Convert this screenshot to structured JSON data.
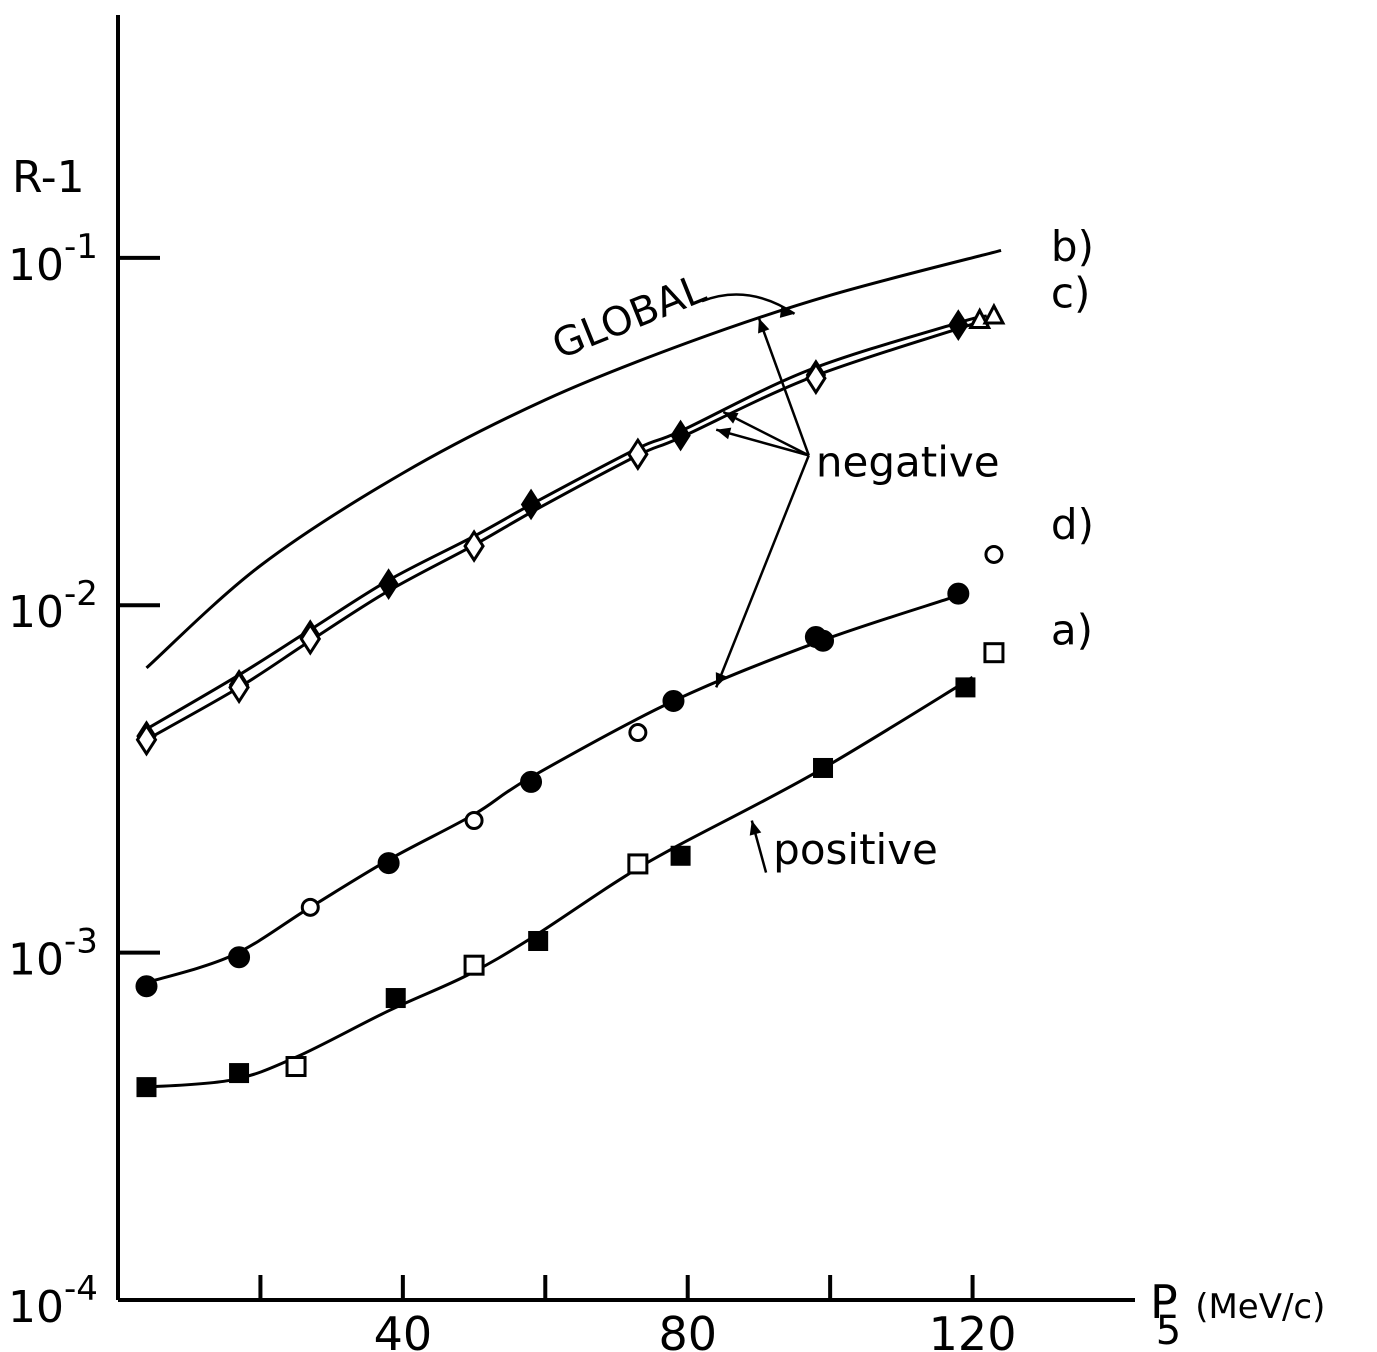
{
  "chart_data": {
    "type": "scatter",
    "y_scale": "log",
    "xlim": [
      0,
      140
    ],
    "ylim": [
      0.0001,
      0.5
    ],
    "x_ticks": [
      {
        "value": 20,
        "label": ""
      },
      {
        "value": 40,
        "label": "40"
      },
      {
        "value": 60,
        "label": ""
      },
      {
        "value": 80,
        "label": "80"
      },
      {
        "value": 100,
        "label": ""
      },
      {
        "value": 120,
        "label": "120"
      }
    ],
    "y_ticks": [
      {
        "value": 0.1,
        "base": "10",
        "exp": "-1"
      },
      {
        "value": 0.01,
        "base": "10",
        "exp": "-2"
      },
      {
        "value": 0.001,
        "base": "10",
        "exp": "-3"
      },
      {
        "value": 0.0001,
        "base": "10",
        "exp": "-4"
      }
    ],
    "ylabel": "R-1",
    "xlabel": {
      "symbol": "P",
      "subscript": "5",
      "unit": "(MeV/c)"
    },
    "curves": [
      {
        "label": "b)",
        "x": [
          4,
          20,
          40,
          60,
          80,
          100,
          124
        ],
        "y": [
          0.0066,
          0.013,
          0.024,
          0.039,
          0.057,
          0.078,
          0.105
        ]
      },
      {
        "label": "c)",
        "x": [
          4,
          17,
          27,
          38,
          50,
          59,
          73,
          79,
          97,
          118,
          122
        ],
        "y": [
          0.0044,
          0.0063,
          0.0085,
          0.0118,
          0.0158,
          0.02,
          0.0283,
          0.0317,
          0.0475,
          0.065,
          0.068
        ]
      },
      {
        "label": "",
        "x": [
          4,
          17,
          27,
          38,
          50,
          59,
          73,
          79,
          97,
          118,
          122
        ],
        "y": [
          0.0041,
          0.0058,
          0.0079,
          0.011,
          0.0149,
          0.019,
          0.027,
          0.0304,
          0.045,
          0.0625,
          0.066
        ]
      },
      {
        "label": "d)",
        "x": [
          4,
          16,
          27,
          38,
          50,
          58,
          78,
          98,
          117
        ],
        "y": [
          0.00082,
          0.00098,
          0.00135,
          0.00185,
          0.0025,
          0.0032,
          0.0053,
          0.0078,
          0.0105
        ]
      },
      {
        "label": "a)",
        "x": [
          4,
          16,
          25,
          38,
          49,
          58,
          70,
          78,
          98,
          120
        ],
        "y": [
          0.00041,
          0.00043,
          0.0005,
          0.00068,
          0.00086,
          0.0011,
          0.0016,
          0.002,
          0.0033,
          0.0062
        ]
      }
    ],
    "series": [
      {
        "name": "a) filled squares",
        "marker": "square",
        "filled": true,
        "x": [
          4,
          17,
          39,
          59,
          79,
          99,
          119
        ],
        "y": [
          0.00041,
          0.00045,
          0.00074,
          0.00108,
          0.0019,
          0.0034,
          0.0058
        ]
      },
      {
        "name": "a) open squares",
        "marker": "square",
        "filled": false,
        "x": [
          25,
          50,
          73,
          123
        ],
        "y": [
          0.00047,
          0.00092,
          0.0018,
          0.0073
        ]
      },
      {
        "name": "d) filled circles",
        "marker": "circle",
        "filled": true,
        "x": [
          4,
          17,
          38,
          58,
          78,
          98,
          99,
          118
        ],
        "y": [
          0.0008,
          0.00097,
          0.00181,
          0.0031,
          0.0053,
          0.0081,
          0.0079,
          0.0108
        ]
      },
      {
        "name": "d) open circles",
        "marker": "circle",
        "filled": false,
        "x": [
          27,
          50,
          73,
          123
        ],
        "y": [
          0.00135,
          0.0024,
          0.0043,
          0.014
        ]
      },
      {
        "name": "c) filled diamonds",
        "marker": "diamond",
        "filled": true,
        "x": [
          4,
          17,
          27,
          38,
          58,
          79,
          98,
          118
        ],
        "y": [
          0.0042,
          0.0059,
          0.0082,
          0.0115,
          0.0195,
          0.0308,
          0.046,
          0.064
        ]
      },
      {
        "name": "c) open diamonds",
        "marker": "diamond",
        "filled": false,
        "x": [
          4,
          17,
          27,
          50,
          73,
          98
        ],
        "y": [
          0.0041,
          0.0058,
          0.008,
          0.0148,
          0.0272,
          0.045
        ]
      },
      {
        "name": "c) open triangles",
        "marker": "triangle",
        "filled": false,
        "x": [
          121,
          123
        ],
        "y": [
          0.066,
          0.068
        ]
      }
    ],
    "annotations": [
      {
        "text": "GLOBAL",
        "x": 62,
        "y": 0.051,
        "rotate": -22
      },
      {
        "text": "b)",
        "x": 131,
        "y": 0.098
      },
      {
        "text": "c)",
        "x": 131,
        "y": 0.072
      },
      {
        "text": "d)",
        "x": 131,
        "y": 0.0155
      },
      {
        "text": "a)",
        "x": 131,
        "y": 0.0077
      },
      {
        "text": "negative",
        "x": 98,
        "y": 0.0235
      },
      {
        "text": "positive",
        "x": 92,
        "y": 0.0018
      }
    ],
    "arrows": [
      {
        "from": [
          82,
          0.075
        ],
        "to": [
          95,
          0.069
        ],
        "curved": true
      },
      {
        "from": [
          97,
          0.027
        ],
        "to": [
          90,
          0.067
        ]
      },
      {
        "from": [
          97,
          0.027
        ],
        "to": [
          85,
          0.036
        ]
      },
      {
        "from": [
          97,
          0.027
        ],
        "to": [
          84,
          0.032
        ]
      },
      {
        "from": [
          97,
          0.027
        ],
        "to": [
          84,
          0.0058
        ]
      },
      {
        "from": [
          91,
          0.0017
        ],
        "to": [
          89,
          0.0024
        ]
      }
    ]
  }
}
